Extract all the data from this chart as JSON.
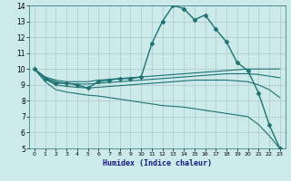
{
  "xlabel": "Humidex (Indice chaleur)",
  "xlim": [
    -0.5,
    23.5
  ],
  "ylim": [
    5,
    14
  ],
  "yticks": [
    5,
    6,
    7,
    8,
    9,
    10,
    11,
    12,
    13,
    14
  ],
  "xticks": [
    0,
    1,
    2,
    3,
    4,
    5,
    6,
    7,
    8,
    9,
    10,
    11,
    12,
    13,
    14,
    15,
    16,
    17,
    18,
    19,
    20,
    21,
    22,
    23
  ],
  "background_color": "#cceaea",
  "grid_color": "#b0c8c8",
  "line_color": "#1e7272",
  "lines": [
    {
      "x": [
        0,
        1,
        2,
        3,
        4,
        5,
        6,
        7,
        8,
        9,
        10,
        11,
        12,
        13,
        14,
        15,
        16,
        17,
        18,
        19,
        20,
        21,
        22,
        23
      ],
      "y": [
        10,
        9.4,
        9.1,
        9.1,
        9.0,
        8.8,
        9.2,
        9.3,
        9.4,
        9.4,
        9.5,
        11.6,
        13.0,
        14.0,
        13.8,
        13.1,
        13.4,
        12.5,
        11.7,
        10.4,
        9.9,
        8.5,
        6.5,
        5.0
      ],
      "marker": "D",
      "markersize": 2.5,
      "linewidth": 1.0
    },
    {
      "x": [
        0,
        1,
        2,
        3,
        4,
        5,
        6,
        7,
        8,
        9,
        10,
        11,
        12,
        13,
        14,
        15,
        16,
        17,
        18,
        19,
        20,
        21,
        22,
        23
      ],
      "y": [
        10,
        9.5,
        9.3,
        9.2,
        9.2,
        9.2,
        9.3,
        9.35,
        9.4,
        9.45,
        9.5,
        9.55,
        9.6,
        9.65,
        9.7,
        9.75,
        9.8,
        9.85,
        9.9,
        9.95,
        10.0,
        10.0,
        10.0,
        10.0
      ],
      "marker": null,
      "linewidth": 0.8
    },
    {
      "x": [
        0,
        1,
        2,
        3,
        4,
        5,
        6,
        7,
        8,
        9,
        10,
        11,
        12,
        13,
        14,
        15,
        16,
        17,
        18,
        19,
        20,
        21,
        22,
        23
      ],
      "y": [
        10,
        9.45,
        9.2,
        9.1,
        9.05,
        9.05,
        9.1,
        9.15,
        9.2,
        9.25,
        9.3,
        9.35,
        9.4,
        9.45,
        9.5,
        9.55,
        9.6,
        9.65,
        9.7,
        9.7,
        9.7,
        9.65,
        9.55,
        9.45
      ],
      "marker": null,
      "linewidth": 0.8
    },
    {
      "x": [
        0,
        1,
        2,
        3,
        4,
        5,
        6,
        7,
        8,
        9,
        10,
        11,
        12,
        13,
        14,
        15,
        16,
        17,
        18,
        19,
        20,
        21,
        22,
        23
      ],
      "y": [
        10,
        9.35,
        9.0,
        8.9,
        8.85,
        8.8,
        8.85,
        8.9,
        8.95,
        9.0,
        9.05,
        9.1,
        9.15,
        9.2,
        9.25,
        9.3,
        9.3,
        9.3,
        9.3,
        9.25,
        9.2,
        9.0,
        8.7,
        8.2
      ],
      "marker": null,
      "linewidth": 0.8
    },
    {
      "x": [
        0,
        1,
        2,
        3,
        4,
        5,
        6,
        7,
        8,
        9,
        10,
        11,
        12,
        13,
        14,
        15,
        16,
        17,
        18,
        19,
        20,
        21,
        22,
        23
      ],
      "y": [
        10,
        9.2,
        8.7,
        8.55,
        8.45,
        8.35,
        8.3,
        8.2,
        8.1,
        8.0,
        7.9,
        7.8,
        7.7,
        7.65,
        7.6,
        7.5,
        7.4,
        7.3,
        7.2,
        7.1,
        7.0,
        6.5,
        5.8,
        5.0
      ],
      "marker": null,
      "linewidth": 0.8
    }
  ]
}
